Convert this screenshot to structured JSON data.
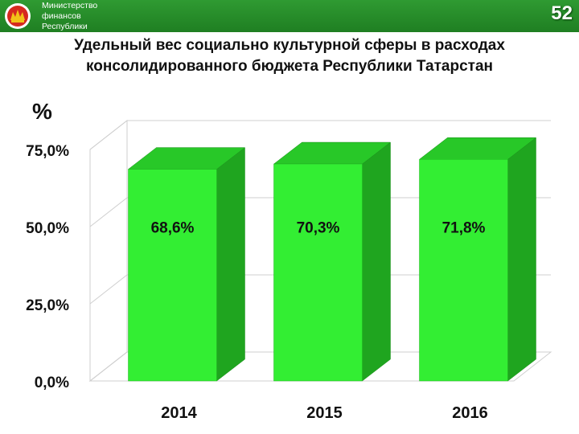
{
  "header": {
    "org_lines": [
      "Министерство",
      "финансов",
      "Республики"
    ],
    "page_number": "52",
    "emblem": "tatarstan-emblem-icon"
  },
  "title_lines": [
    "Удельный вес социально культурной сферы в расходах",
    "консолидированного бюджета Республики Татарстан"
  ],
  "colors": {
    "header": "#2a8f2d",
    "bar_front": "#33ee33",
    "bar_side": "#1fa51f",
    "bar_top": "#28c828"
  },
  "chart_data": {
    "type": "bar",
    "categories": [
      "2014",
      "2015",
      "2016"
    ],
    "values": [
      68.6,
      70.3,
      71.8
    ],
    "data_labels": [
      "68,6%",
      "70,3%",
      "71,8%"
    ],
    "ylabel": "%",
    "ylim": [
      0,
      75
    ],
    "yticks": [
      0,
      25,
      50,
      75
    ],
    "ytick_labels": [
      "0,0%",
      "25,0%",
      "50,0%",
      "75,0%"
    ],
    "grid": true,
    "three_d": true
  }
}
